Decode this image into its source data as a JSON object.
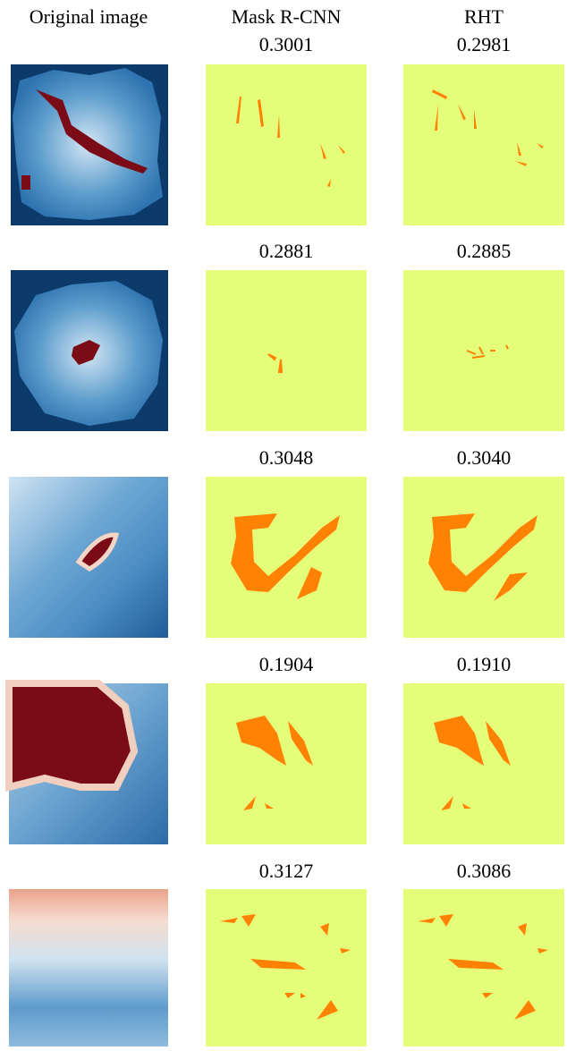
{
  "columns": [
    "Original image",
    "Mask R-CNN",
    "RHT"
  ],
  "rows": [
    {
      "mask_rcnn": "0.3001",
      "rht": "0.2981"
    },
    {
      "mask_rcnn": "0.2881",
      "rht": "0.2885"
    },
    {
      "mask_rcnn": "0.3048",
      "rht": "0.3040"
    },
    {
      "mask_rcnn": "0.1904",
      "rht": "0.1910"
    },
    {
      "mask_rcnn": "0.3127",
      "rht": "0.3086"
    }
  ]
}
